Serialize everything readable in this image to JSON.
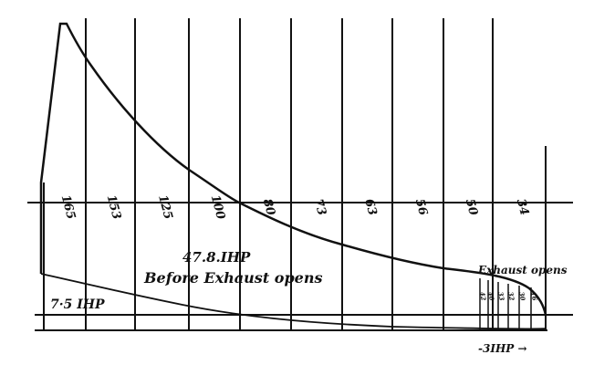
{
  "ordinate_labels": [
    "165",
    "153",
    "125",
    "100",
    "80",
    "73",
    "63",
    "56",
    "50",
    "34"
  ],
  "small_ordinate_labels": [
    "42",
    "40",
    "33",
    "32",
    "30",
    "16"
  ],
  "annotations": {
    "main_power": "47.8.IHP",
    "main_caption": "Before Exhaust opens",
    "back_power": "7·5 IHP",
    "exhaust": "Exhaust opens",
    "exhaust_power": "-3IHP →"
  },
  "colors": {
    "ink": "#111111",
    "paper": "#ffffff"
  }
}
